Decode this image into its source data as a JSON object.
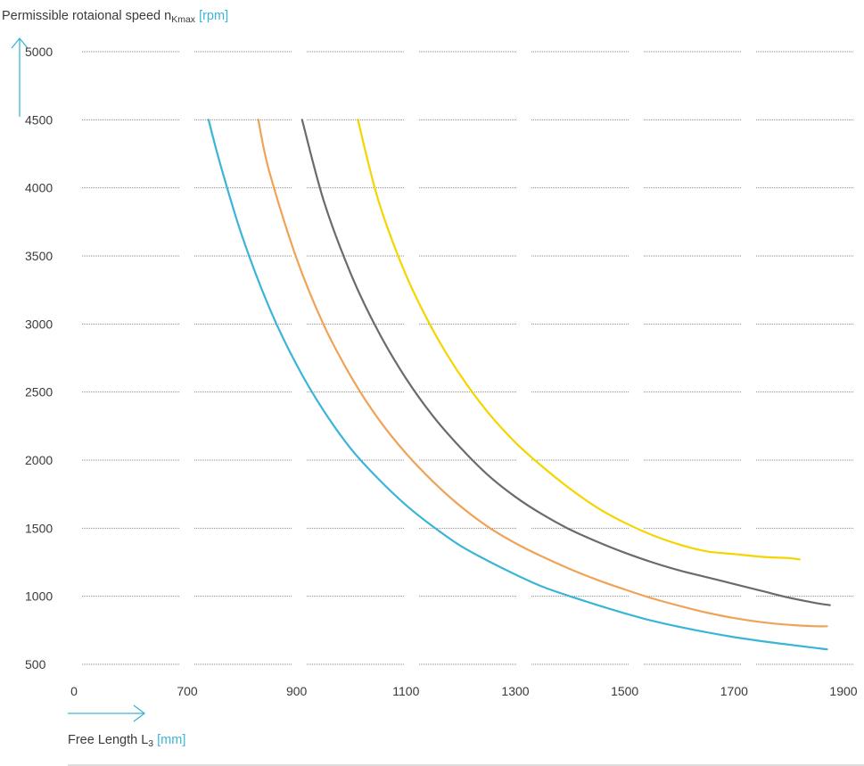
{
  "chart_data": {
    "type": "line",
    "ylabel": {
      "main": "Permissible rotaional speed n",
      "sub": "Kmax",
      "unit": "[rpm]"
    },
    "xlabel": {
      "main": "Free Length L",
      "sub": "3",
      "unit": "[mm]"
    },
    "x_ticks": [
      "0",
      "700",
      "900",
      "1100",
      "1300",
      "1500",
      "1700",
      "1900"
    ],
    "y_ticks": [
      "500",
      "1000",
      "1500",
      "2000",
      "2500",
      "3000",
      "3500",
      "4000",
      "4500",
      "5000"
    ],
    "ylim": [
      500,
      5000
    ],
    "grid": true,
    "grid_style": "dotted",
    "axis_break": "x axis jumps from 0 to 700",
    "accent_color": "#3ab5d8",
    "series": [
      {
        "color": "#3ab5d8",
        "x": [
          739,
          760,
          800,
          850,
          900,
          950,
          1000,
          1050,
          1100,
          1150,
          1200,
          1250,
          1300,
          1350,
          1400,
          1450,
          1500,
          1550,
          1600,
          1650,
          1700,
          1750,
          1800,
          1850,
          1870
        ],
        "y": [
          4500,
          4180,
          3650,
          3120,
          2700,
          2360,
          2080,
          1860,
          1670,
          1510,
          1370,
          1260,
          1160,
          1070,
          1000,
          935,
          875,
          820,
          775,
          735,
          700,
          670,
          645,
          620,
          610
        ]
      },
      {
        "color": "#f0a257",
        "x": [
          830,
          850,
          900,
          950,
          1000,
          1050,
          1100,
          1150,
          1200,
          1250,
          1300,
          1350,
          1400,
          1450,
          1500,
          1550,
          1600,
          1650,
          1700,
          1750,
          1800,
          1850,
          1870
        ],
        "y": [
          4500,
          4120,
          3480,
          2990,
          2610,
          2300,
          2050,
          1840,
          1660,
          1510,
          1390,
          1290,
          1200,
          1120,
          1050,
          985,
          930,
          880,
          840,
          810,
          790,
          780,
          780
        ]
      },
      {
        "color": "#6b6b6b",
        "x": [
          910,
          950,
          1000,
          1050,
          1100,
          1150,
          1200,
          1250,
          1300,
          1350,
          1400,
          1450,
          1500,
          1550,
          1600,
          1650,
          1700,
          1750,
          1800,
          1850,
          1875
        ],
        "y": [
          4500,
          3900,
          3360,
          2940,
          2600,
          2320,
          2090,
          1890,
          1730,
          1600,
          1490,
          1400,
          1320,
          1250,
          1190,
          1140,
          1090,
          1040,
          990,
          950,
          935
        ]
      },
      {
        "color": "#f5d400",
        "x": [
          1012,
          1050,
          1100,
          1150,
          1200,
          1250,
          1300,
          1350,
          1400,
          1450,
          1500,
          1550,
          1600,
          1650,
          1700,
          1750,
          1800,
          1820
        ],
        "y": [
          4500,
          3900,
          3360,
          2950,
          2620,
          2350,
          2130,
          1950,
          1790,
          1650,
          1540,
          1450,
          1380,
          1330,
          1310,
          1290,
          1280,
          1270
        ]
      }
    ]
  }
}
